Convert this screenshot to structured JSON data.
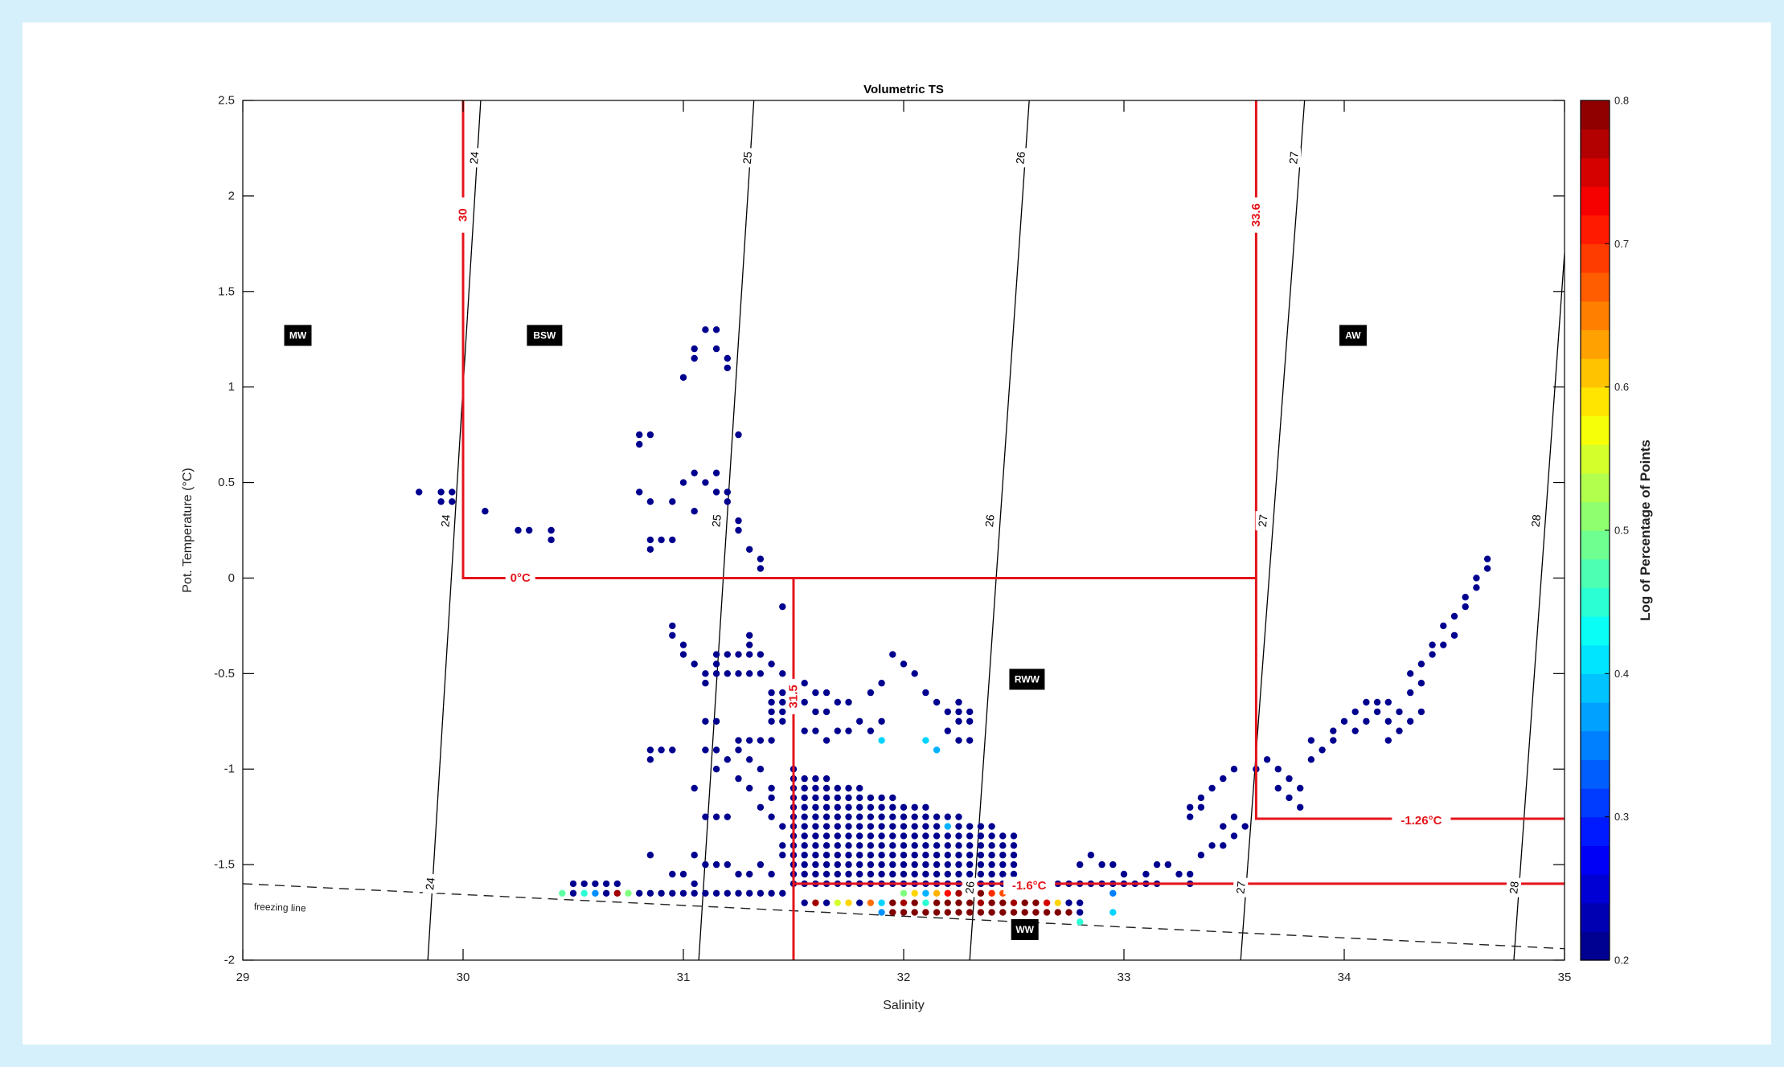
{
  "chart_data": {
    "type": "scatter",
    "title": "Volumetric TS",
    "xlabel": "Salinity",
    "ylabel": "Pot. Temperature (°C)",
    "xlim": [
      29,
      35
    ],
    "ylim": [
      -2,
      2.5
    ],
    "x_ticks": [
      "29",
      "30",
      "31",
      "32",
      "33",
      "34",
      "35"
    ],
    "y_ticks": [
      "-2",
      "-1.5",
      "-1",
      "-0.5",
      "0",
      "0.5",
      "1",
      "1.5",
      "2",
      "2.5"
    ],
    "colorbar": {
      "label": "Log of Percentage of Points",
      "range": [
        0.2,
        0.8
      ],
      "ticks": [
        "0.2",
        "0.3",
        "0.4",
        "0.5",
        "0.6",
        "0.7",
        "0.8"
      ],
      "colormap": "jet"
    },
    "density_contours": [
      {
        "label": "24",
        "s_bottom": 29.84,
        "s_top": 30.08
      },
      {
        "label": "25",
        "s_bottom": 31.07,
        "s_top": 31.32
      },
      {
        "label": "26",
        "s_bottom": 32.3,
        "s_top": 32.57
      },
      {
        "label": "27",
        "s_bottom": 33.53,
        "s_top": 33.82
      },
      {
        "label": "28",
        "s_bottom": 34.77,
        "s_top": 35.0,
        "t_top": 1.7
      }
    ],
    "contour_labels": [
      {
        "text": "24",
        "s": 30.05,
        "t": 2.2
      },
      {
        "text": "25",
        "s": 31.29,
        "t": 2.2
      },
      {
        "text": "26",
        "s": 32.53,
        "t": 2.2
      },
      {
        "text": "27",
        "s": 33.77,
        "t": 2.2
      },
      {
        "text": "24",
        "s": 29.92,
        "t": 0.3
      },
      {
        "text": "25",
        "s": 31.15,
        "t": 0.3
      },
      {
        "text": "26",
        "s": 32.39,
        "t": 0.3
      },
      {
        "text": "27",
        "s": 33.63,
        "t": 0.3
      },
      {
        "text": "28",
        "s": 34.87,
        "t": 0.3
      },
      {
        "text": "24",
        "s": 29.85,
        "t": -1.6
      },
      {
        "text": "26",
        "s": 32.3,
        "t": -1.62
      },
      {
        "text": "27",
        "s": 33.53,
        "t": -1.62
      },
      {
        "text": "28",
        "s": 34.77,
        "t": -1.62
      }
    ],
    "freezing_line": {
      "label": "freezing line",
      "points": [
        [
          29,
          -1.6
        ],
        [
          35,
          -1.94
        ]
      ]
    },
    "water_mass_boundaries": [
      {
        "points": [
          [
            30,
            2.5
          ],
          [
            30,
            0
          ],
          [
            33.6,
            0
          ],
          [
            33.6,
            2.5
          ]
        ]
      },
      {
        "points": [
          [
            31.5,
            0
          ],
          [
            31.5,
            -2
          ]
        ]
      },
      {
        "points": [
          [
            33.6,
            0
          ],
          [
            33.6,
            -1.26
          ],
          [
            35,
            -1.26
          ]
        ]
      },
      {
        "points": [
          [
            31.5,
            -1.6
          ],
          [
            35,
            -1.6
          ]
        ]
      }
    ],
    "boundary_labels": [
      {
        "text": "30",
        "s": 30.0,
        "t": 1.9,
        "rotate": true
      },
      {
        "text": "33.6",
        "s": 33.6,
        "t": 1.9,
        "rotate": true
      },
      {
        "text": "31.5",
        "s": 31.5,
        "t": -0.62,
        "rotate": true
      },
      {
        "text": "0°C",
        "s": 30.26,
        "t": 0
      },
      {
        "text": "-1.26°C",
        "s": 34.35,
        "t": -1.27
      },
      {
        "text": "-1.6°C",
        "s": 32.57,
        "t": -1.61
      }
    ],
    "regions": [
      {
        "name": "MW",
        "s": 29.25,
        "t": 1.27
      },
      {
        "name": "BSW",
        "s": 30.37,
        "t": 1.27
      },
      {
        "name": "AW",
        "s": 34.04,
        "t": 1.27
      },
      {
        "name": "RWW",
        "s": 32.56,
        "t": -0.53
      },
      {
        "name": "WW",
        "s": 32.55,
        "t": -1.84
      }
    ],
    "points_sparse": [
      [
        29.8,
        0.45
      ],
      [
        29.9,
        0.45
      ],
      [
        29.95,
        0.45
      ],
      [
        29.9,
        0.4
      ],
      [
        29.95,
        0.4
      ],
      [
        30.1,
        0.35
      ],
      [
        30.25,
        0.25
      ],
      [
        30.3,
        0.25
      ],
      [
        30.4,
        0.25
      ],
      [
        30.4,
        0.2
      ],
      [
        30.8,
        0.75
      ],
      [
        30.85,
        0.75
      ],
      [
        30.8,
        0.7
      ],
      [
        30.8,
        0.45
      ],
      [
        30.85,
        0.4
      ],
      [
        30.85,
        0.2
      ],
      [
        30.9,
        0.2
      ],
      [
        30.95,
        0.2
      ],
      [
        30.85,
        0.15
      ],
      [
        31.0,
        1.05
      ],
      [
        31.05,
        1.15
      ],
      [
        31.05,
        1.2
      ],
      [
        31.1,
        1.3
      ],
      [
        31.15,
        1.3
      ],
      [
        31.15,
        1.2
      ],
      [
        31.2,
        1.15
      ],
      [
        31.2,
        1.1
      ],
      [
        31.25,
        0.75
      ],
      [
        31.0,
        0.5
      ],
      [
        31.05,
        0.55
      ],
      [
        31.1,
        0.5
      ],
      [
        31.15,
        0.55
      ],
      [
        31.15,
        0.45
      ],
      [
        31.2,
        0.45
      ],
      [
        31.2,
        0.4
      ],
      [
        30.95,
        0.4
      ],
      [
        31.05,
        0.35
      ],
      [
        31.25,
        0.3
      ],
      [
        31.25,
        0.25
      ],
      [
        31.3,
        0.15
      ],
      [
        31.35,
        0.1
      ],
      [
        31.35,
        0.05
      ],
      [
        31.45,
        -0.15
      ],
      [
        30.95,
        -0.25
      ],
      [
        30.95,
        -0.3
      ],
      [
        31.0,
        -0.35
      ],
      [
        31.0,
        -0.4
      ],
      [
        31.05,
        -0.45
      ],
      [
        31.1,
        -0.5
      ],
      [
        31.1,
        -0.55
      ],
      [
        31.15,
        -0.4
      ],
      [
        31.15,
        -0.45
      ],
      [
        31.2,
        -0.4
      ],
      [
        31.25,
        -0.4
      ],
      [
        31.3,
        -0.3
      ],
      [
        31.3,
        -0.35
      ],
      [
        31.3,
        -0.4
      ],
      [
        31.35,
        -0.4
      ],
      [
        31.15,
        -0.5
      ],
      [
        31.2,
        -0.5
      ],
      [
        31.25,
        -0.5
      ],
      [
        31.3,
        -0.5
      ],
      [
        31.35,
        -0.5
      ],
      [
        31.4,
        -0.45
      ],
      [
        31.45,
        -0.5
      ],
      [
        30.85,
        -0.95
      ],
      [
        30.85,
        -0.9
      ],
      [
        30.9,
        -0.9
      ],
      [
        30.95,
        -0.9
      ],
      [
        31.1,
        -0.75
      ],
      [
        31.15,
        -0.75
      ],
      [
        31.1,
        -0.9
      ],
      [
        31.05,
        -1.1
      ],
      [
        31.1,
        -1.25
      ],
      [
        31.15,
        -1.25
      ],
      [
        31.2,
        -1.25
      ],
      [
        31.15,
        -0.9
      ],
      [
        31.15,
        -1.0
      ],
      [
        31.2,
        -0.95
      ],
      [
        31.25,
        -0.85
      ],
      [
        31.3,
        -0.85
      ],
      [
        31.35,
        -0.85
      ],
      [
        31.4,
        -0.85
      ],
      [
        31.25,
        -0.9
      ],
      [
        31.3,
        -0.95
      ],
      [
        31.35,
        -1.0
      ],
      [
        31.25,
        -1.05
      ],
      [
        31.3,
        -1.1
      ],
      [
        31.4,
        -1.1
      ],
      [
        31.4,
        -1.15
      ],
      [
        31.35,
        -1.2
      ],
      [
        31.4,
        -1.25
      ],
      [
        31.45,
        -1.3
      ],
      [
        31.4,
        -0.6
      ],
      [
        31.45,
        -0.6
      ],
      [
        31.4,
        -0.65
      ],
      [
        31.45,
        -0.65
      ],
      [
        31.4,
        -0.7
      ],
      [
        31.45,
        -0.7
      ],
      [
        31.4,
        -0.75
      ],
      [
        31.45,
        -0.75
      ],
      [
        31.55,
        -0.55
      ],
      [
        31.6,
        -0.6
      ],
      [
        31.65,
        -0.6
      ],
      [
        31.7,
        -0.65
      ],
      [
        31.75,
        -0.65
      ],
      [
        31.55,
        -0.65
      ],
      [
        31.6,
        -0.7
      ],
      [
        31.65,
        -0.7
      ],
      [
        31.55,
        -0.8
      ],
      [
        31.6,
        -0.8
      ],
      [
        31.65,
        -0.85
      ],
      [
        31.7,
        -0.8
      ],
      [
        31.75,
        -0.8
      ],
      [
        31.8,
        -0.75
      ],
      [
        31.85,
        -0.8
      ],
      [
        31.9,
        -0.75
      ],
      [
        31.85,
        -0.6
      ],
      [
        31.9,
        -0.55
      ],
      [
        31.95,
        -0.4
      ],
      [
        32.0,
        -0.45
      ],
      [
        32.05,
        -0.5
      ],
      [
        32.1,
        -0.6
      ],
      [
        32.15,
        -0.65
      ],
      [
        32.2,
        -0.7
      ],
      [
        32.25,
        -0.65
      ],
      [
        32.25,
        -0.7
      ],
      [
        32.3,
        -0.7
      ],
      [
        32.25,
        -0.75
      ],
      [
        32.3,
        -0.75
      ],
      [
        32.2,
        -0.8
      ],
      [
        32.25,
        -0.85
      ],
      [
        32.3,
        -0.85
      ],
      [
        31.05,
        -1.45
      ],
      [
        31.1,
        -1.5
      ],
      [
        31.15,
        -1.5
      ],
      [
        31.2,
        -1.5
      ],
      [
        31.25,
        -1.55
      ],
      [
        31.3,
        -1.55
      ],
      [
        31.35,
        -1.5
      ],
      [
        31.4,
        -1.55
      ],
      [
        30.85,
        -1.45
      ],
      [
        30.95,
        -1.55
      ],
      [
        31.0,
        -1.55
      ],
      [
        31.05,
        -1.6
      ],
      [
        31.45,
        -1.45
      ],
      [
        31.45,
        -1.4
      ],
      [
        33.2,
        -1.5
      ],
      [
        33.25,
        -1.55
      ],
      [
        33.3,
        -1.55
      ],
      [
        33.35,
        -1.45
      ],
      [
        33.4,
        -1.4
      ],
      [
        33.45,
        -1.4
      ],
      [
        33.5,
        -1.35
      ],
      [
        33.55,
        -1.3
      ],
      [
        33.3,
        -1.6
      ],
      [
        33.0,
        -1.55
      ],
      [
        33.05,
        -1.6
      ],
      [
        33.1,
        -1.6
      ],
      [
        33.15,
        -1.6
      ],
      [
        33.1,
        -1.55
      ],
      [
        33.15,
        -1.5
      ],
      [
        33.3,
        -1.2
      ],
      [
        33.35,
        -1.15
      ],
      [
        33.4,
        -1.1
      ],
      [
        33.45,
        -1.05
      ],
      [
        33.5,
        -1.0
      ],
      [
        33.45,
        -1.3
      ],
      [
        33.5,
        -1.25
      ],
      [
        33.6,
        -1.0
      ],
      [
        33.65,
        -0.95
      ],
      [
        33.7,
        -1.0
      ],
      [
        33.75,
        -1.05
      ],
      [
        33.8,
        -1.1
      ],
      [
        33.7,
        -1.1
      ],
      [
        33.75,
        -1.15
      ],
      [
        33.8,
        -1.2
      ],
      [
        33.85,
        -0.95
      ],
      [
        33.9,
        -0.9
      ],
      [
        33.85,
        -0.85
      ],
      [
        33.95,
        -0.8
      ],
      [
        34.0,
        -0.75
      ],
      [
        34.05,
        -0.7
      ],
      [
        34.1,
        -0.65
      ],
      [
        34.15,
        -0.65
      ],
      [
        34.2,
        -0.65
      ],
      [
        34.25,
        -0.7
      ],
      [
        34.15,
        -0.7
      ],
      [
        34.2,
        -0.75
      ],
      [
        34.3,
        -0.6
      ],
      [
        34.35,
        -0.55
      ],
      [
        34.3,
        -0.5
      ],
      [
        34.35,
        -0.45
      ],
      [
        34.4,
        -0.4
      ],
      [
        34.45,
        -0.35
      ],
      [
        34.5,
        -0.3
      ],
      [
        34.4,
        -0.35
      ],
      [
        34.45,
        -0.25
      ],
      [
        34.5,
        -0.2
      ],
      [
        34.55,
        -0.15
      ],
      [
        34.55,
        -0.1
      ],
      [
        34.6,
        -0.05
      ],
      [
        34.6,
        0.0
      ],
      [
        34.65,
        0.05
      ],
      [
        34.65,
        0.1
      ],
      [
        34.25,
        -0.8
      ],
      [
        34.3,
        -0.75
      ],
      [
        34.35,
        -0.7
      ],
      [
        34.2,
        -0.85
      ],
      [
        34.1,
        -0.75
      ],
      [
        34.05,
        -0.8
      ],
      [
        33.95,
        -0.85
      ],
      [
        33.3,
        -1.25
      ],
      [
        33.35,
        -1.2
      ],
      [
        32.85,
        -1.45
      ],
      [
        32.9,
        -1.5
      ],
      [
        32.95,
        -1.5
      ],
      [
        32.8,
        -1.5
      ]
    ],
    "points_dense": {
      "s_start": 31.5,
      "s_end": 32.5,
      "s_step": 0.05,
      "t_start": -1.55,
      "t_end": -1.0,
      "t_step": 0.05
    },
    "points_bottom_row": {
      "t": -1.7,
      "s_start": 31.55,
      "s_end": 32.8,
      "s_step": 0.05
    },
    "points_low_row": {
      "t": -1.75,
      "s_start": 31.9,
      "s_end": 32.8,
      "s_step": 0.05
    },
    "points_left_rows": [
      {
        "t": -1.6,
        "s_start": 30.5,
        "s_end": 30.7,
        "s_step": 0.05
      },
      {
        "t": -1.65,
        "s_start": 30.45,
        "s_end": 31.45,
        "s_step": 0.05
      }
    ],
    "colored_points": [
      {
        "s": 30.45,
        "t": -1.65,
        "v": 0.48
      },
      {
        "s": 30.55,
        "t": -1.65,
        "v": 0.45
      },
      {
        "s": 30.6,
        "t": -1.65,
        "v": 0.36
      },
      {
        "s": 30.7,
        "t": -1.65,
        "v": 0.78
      },
      {
        "s": 30.75,
        "t": -1.65,
        "v": 0.5
      },
      {
        "s": 31.6,
        "t": -1.7,
        "v": 0.78
      },
      {
        "s": 31.7,
        "t": -1.7,
        "v": 0.55
      },
      {
        "s": 31.75,
        "t": -1.7,
        "v": 0.6
      },
      {
        "s": 31.85,
        "t": -1.7,
        "v": 0.66
      },
      {
        "s": 31.9,
        "t": -1.7,
        "v": 0.4
      },
      {
        "s": 31.95,
        "t": -1.7,
        "v": 0.8
      },
      {
        "s": 32.0,
        "t": -1.7,
        "v": 0.78
      },
      {
        "s": 32.05,
        "t": -1.7,
        "v": 0.8
      },
      {
        "s": 32.1,
        "t": -1.7,
        "v": 0.45
      },
      {
        "s": 32.15,
        "t": -1.7,
        "v": 0.8
      },
      {
        "s": 32.2,
        "t": -1.7,
        "v": 0.8
      },
      {
        "s": 32.25,
        "t": -1.7,
        "v": 0.8
      },
      {
        "s": 32.3,
        "t": -1.7,
        "v": 0.8
      },
      {
        "s": 32.35,
        "t": -1.7,
        "v": 0.78
      },
      {
        "s": 32.4,
        "t": -1.7,
        "v": 0.8
      },
      {
        "s": 32.45,
        "t": -1.7,
        "v": 0.8
      },
      {
        "s": 32.5,
        "t": -1.7,
        "v": 0.78
      },
      {
        "s": 32.55,
        "t": -1.7,
        "v": 0.8
      },
      {
        "s": 32.6,
        "t": -1.7,
        "v": 0.8
      },
      {
        "s": 32.65,
        "t": -1.7,
        "v": 0.75
      },
      {
        "s": 32.7,
        "t": -1.7,
        "v": 0.6
      },
      {
        "s": 31.95,
        "t": -1.75,
        "v": 0.8
      },
      {
        "s": 32.0,
        "t": -1.75,
        "v": 0.8
      },
      {
        "s": 32.05,
        "t": -1.75,
        "v": 0.8
      },
      {
        "s": 32.1,
        "t": -1.75,
        "v": 0.8
      },
      {
        "s": 32.15,
        "t": -1.75,
        "v": 0.8
      },
      {
        "s": 32.2,
        "t": -1.75,
        "v": 0.8
      },
      {
        "s": 32.25,
        "t": -1.75,
        "v": 0.8
      },
      {
        "s": 32.3,
        "t": -1.75,
        "v": 0.8
      },
      {
        "s": 32.35,
        "t": -1.75,
        "v": 0.8
      },
      {
        "s": 32.4,
        "t": -1.75,
        "v": 0.8
      },
      {
        "s": 32.45,
        "t": -1.75,
        "v": 0.8
      },
      {
        "s": 32.5,
        "t": -1.75,
        "v": 0.8
      },
      {
        "s": 32.55,
        "t": -1.75,
        "v": 0.8
      },
      {
        "s": 32.6,
        "t": -1.75,
        "v": 0.8
      },
      {
        "s": 32.65,
        "t": -1.75,
        "v": 0.8
      },
      {
        "s": 32.7,
        "t": -1.75,
        "v": 0.8
      },
      {
        "s": 32.75,
        "t": -1.75,
        "v": 0.8
      },
      {
        "s": 32.0,
        "t": -1.65,
        "v": 0.5
      },
      {
        "s": 32.05,
        "t": -1.65,
        "v": 0.6
      },
      {
        "s": 32.1,
        "t": -1.65,
        "v": 0.38
      },
      {
        "s": 32.15,
        "t": -1.65,
        "v": 0.62
      },
      {
        "s": 32.2,
        "t": -1.65,
        "v": 0.72
      },
      {
        "s": 32.25,
        "t": -1.65,
        "v": 0.78
      },
      {
        "s": 32.3,
        "t": -1.65,
        "v": 0.75
      },
      {
        "s": 32.35,
        "t": -1.65,
        "v": 0.8
      },
      {
        "s": 32.4,
        "t": -1.65,
        "v": 0.7
      },
      {
        "s": 32.45,
        "t": -1.65,
        "v": 0.68
      },
      {
        "s": 31.9,
        "t": -0.85,
        "v": 0.4
      },
      {
        "s": 32.1,
        "t": -0.85,
        "v": 0.4
      },
      {
        "s": 32.15,
        "t": -0.9,
        "v": 0.38
      },
      {
        "s": 32.2,
        "t": -1.3,
        "v": 0.38
      },
      {
        "s": 31.9,
        "t": -1.75,
        "v": 0.36
      },
      {
        "s": 32.8,
        "t": -1.8,
        "v": 0.45
      },
      {
        "s": 32.95,
        "t": -1.75,
        "v": 0.4
      },
      {
        "s": 32.95,
        "t": -1.65,
        "v": 0.35
      }
    ]
  }
}
